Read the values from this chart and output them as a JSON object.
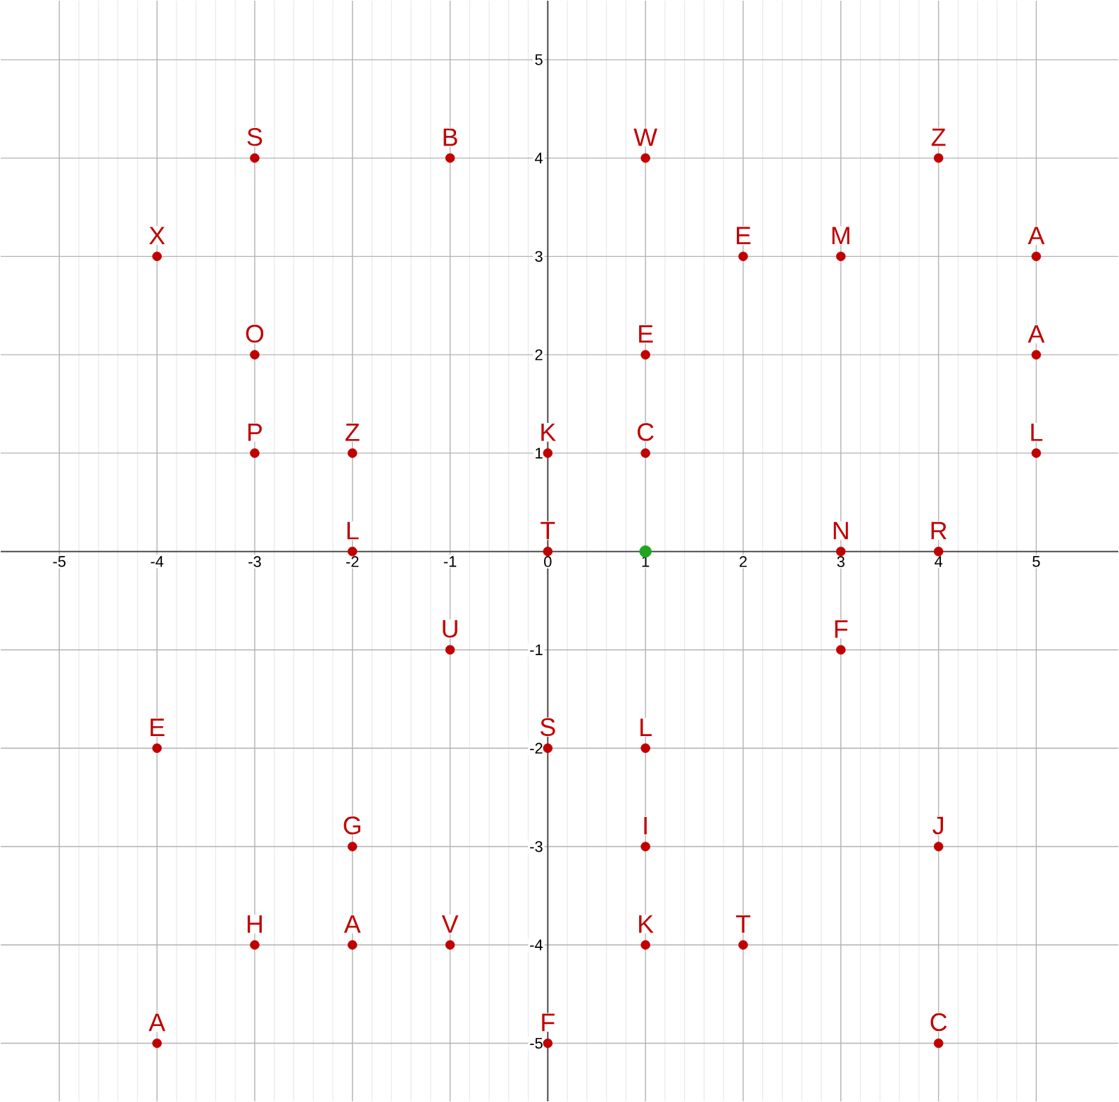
{
  "chart_data": {
    "type": "scatter",
    "xlim": [
      -5.6,
      5.84
    ],
    "ylim": [
      -5.59,
      5.6
    ],
    "xticks": [
      -5,
      -4,
      -3,
      -2,
      -1,
      0,
      1,
      2,
      3,
      4,
      5
    ],
    "yticks": [
      -5,
      -4,
      -3,
      -2,
      -1,
      1,
      2,
      3,
      4,
      5
    ],
    "grid": true,
    "marker": "circle",
    "series": [
      {
        "color": "#c00000",
        "x": [
          -3,
          -1,
          1,
          4,
          -4,
          2,
          3,
          5,
          -3,
          1,
          5,
          -3,
          -2,
          0,
          1,
          5,
          -2,
          0,
          3,
          4,
          -1,
          3,
          -4,
          0,
          1,
          -2,
          1,
          4,
          -3,
          -2,
          -1,
          1,
          2,
          -4,
          0,
          4
        ],
        "values": [
          4,
          4,
          4,
          4,
          3,
          3,
          3,
          3,
          2,
          2,
          2,
          1,
          1,
          1,
          1,
          1,
          0,
          0,
          0,
          0,
          -1,
          -1,
          -2,
          -2,
          -2,
          -3,
          -3,
          -3,
          -4,
          -4,
          -4,
          -4,
          -4,
          -5,
          -5,
          -5
        ]
      },
      {
        "color": "#1fa51f",
        "x": [
          1
        ],
        "values": [
          0
        ]
      }
    ],
    "annotations": [
      {
        "text": "S",
        "x": -3,
        "y": 4
      },
      {
        "text": "B",
        "x": -1,
        "y": 4
      },
      {
        "text": "W",
        "x": 1,
        "y": 4
      },
      {
        "text": "Z",
        "x": 4,
        "y": 4
      },
      {
        "text": "X",
        "x": -4,
        "y": 3
      },
      {
        "text": "E",
        "x": 2,
        "y": 3
      },
      {
        "text": "M",
        "x": 3,
        "y": 3
      },
      {
        "text": "A",
        "x": 5,
        "y": 3
      },
      {
        "text": "O",
        "x": -3,
        "y": 2
      },
      {
        "text": "E",
        "x": 1,
        "y": 2
      },
      {
        "text": "A",
        "x": 5,
        "y": 2
      },
      {
        "text": "P",
        "x": -3,
        "y": 1
      },
      {
        "text": "Z",
        "x": -2,
        "y": 1
      },
      {
        "text": "K",
        "x": 0,
        "y": 1
      },
      {
        "text": "C",
        "x": 1,
        "y": 1
      },
      {
        "text": "L",
        "x": 5,
        "y": 1
      },
      {
        "text": "L",
        "x": -2,
        "y": 0
      },
      {
        "text": "T",
        "x": 0,
        "y": 0
      },
      {
        "text": "N",
        "x": 3,
        "y": 0
      },
      {
        "text": "R",
        "x": 4,
        "y": 0
      },
      {
        "text": "U",
        "x": -1,
        "y": -1
      },
      {
        "text": "F",
        "x": 3,
        "y": -1
      },
      {
        "text": "E",
        "x": -4,
        "y": -2
      },
      {
        "text": "S",
        "x": 0,
        "y": -2
      },
      {
        "text": "L",
        "x": 1,
        "y": -2
      },
      {
        "text": "G",
        "x": -2,
        "y": -3
      },
      {
        "text": "I",
        "x": 1,
        "y": -3
      },
      {
        "text": "J",
        "x": 4,
        "y": -3
      },
      {
        "text": "H",
        "x": -3,
        "y": -4
      },
      {
        "text": "A",
        "x": -2,
        "y": -4
      },
      {
        "text": "V",
        "x": -1,
        "y": -4
      },
      {
        "text": "K",
        "x": 1,
        "y": -4
      },
      {
        "text": "T",
        "x": 2,
        "y": -4
      },
      {
        "text": "A",
        "x": -4,
        "y": -5
      },
      {
        "text": "F",
        "x": 0,
        "y": -5
      },
      {
        "text": "C",
        "x": 4,
        "y": -5
      }
    ]
  }
}
